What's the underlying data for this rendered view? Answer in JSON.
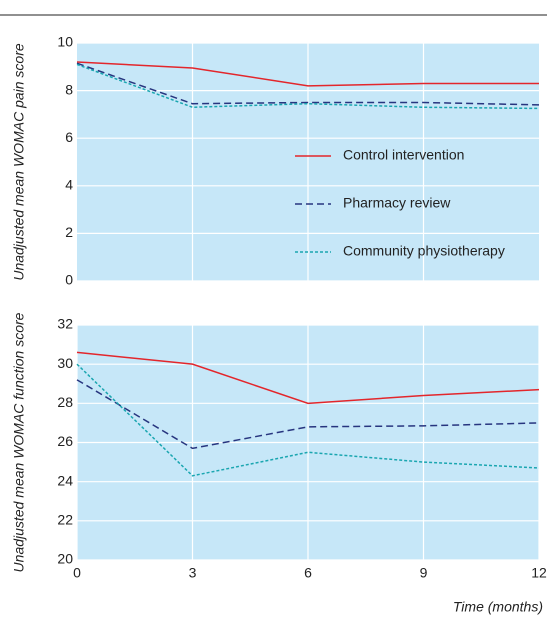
{
  "chart_data": [
    {
      "type": "line",
      "y_label": "Unadjusted mean WOMAC pain score",
      "x": [
        0,
        3,
        6,
        9,
        12
      ],
      "xlim": [
        0,
        12
      ],
      "xticks": [
        3,
        6,
        9
      ],
      "ylim": [
        0,
        10
      ],
      "yticks": [
        0,
        2,
        4,
        6,
        8,
        10
      ],
      "grid": true,
      "legend": "lower right",
      "series": [
        {
          "name": "Control intervention",
          "color": "#e3262b",
          "dash": "solid",
          "values": [
            9.2,
            8.95,
            8.2,
            8.3,
            8.3
          ]
        },
        {
          "name": "Pharmacy review",
          "color": "#27357f",
          "dash": "dashed",
          "values": [
            9.15,
            7.45,
            7.5,
            7.5,
            7.4
          ]
        },
        {
          "name": "Community physiotherapy",
          "color": "#1aa6b0",
          "dash": "dotted",
          "values": [
            9.1,
            7.3,
            7.45,
            7.3,
            7.25
          ]
        }
      ]
    },
    {
      "type": "line",
      "y_label": "Unadjusted mean WOMAC function score",
      "x_label": "Time (months)",
      "x": [
        0,
        3,
        6,
        9,
        12
      ],
      "xlim": [
        0,
        12
      ],
      "xticks": [
        0,
        3,
        6,
        9,
        12
      ],
      "ylim": [
        20,
        32
      ],
      "yticks": [
        20,
        22,
        24,
        26,
        28,
        30,
        32
      ],
      "grid": true,
      "series": [
        {
          "color": "#e3262b",
          "dash": "solid",
          "values": [
            30.6,
            30.0,
            28.0,
            28.4,
            28.7
          ]
        },
        {
          "color": "#27357f",
          "dash": "dashed",
          "values": [
            29.2,
            25.7,
            26.8,
            26.85,
            27.0
          ]
        },
        {
          "color": "#1aa6b0",
          "dash": "dotted",
          "values": [
            30.0,
            24.3,
            25.5,
            25.0,
            24.7
          ]
        }
      ]
    }
  ]
}
